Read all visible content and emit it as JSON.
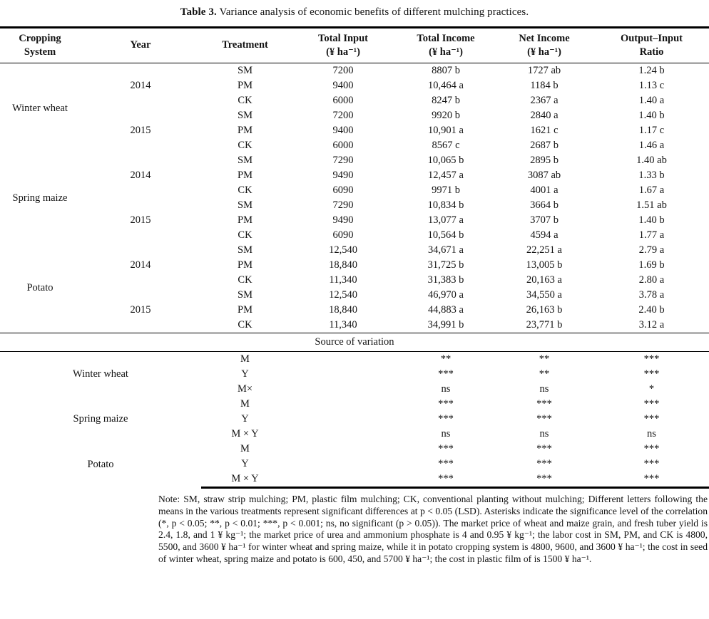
{
  "title": {
    "label": "Table 3.",
    "text": "Variance analysis of economic benefits of different mulching practices."
  },
  "table": {
    "headers": [
      {
        "top": "Cropping",
        "bottom": "System"
      },
      {
        "top": "Year",
        "bottom": ""
      },
      {
        "top": "Treatment",
        "bottom": ""
      },
      {
        "top": "Total Input",
        "bottom": "(¥ ha⁻¹)"
      },
      {
        "top": "Total Income",
        "bottom": "(¥ ha⁻¹)"
      },
      {
        "top": "Net Income",
        "bottom": "(¥ ha⁻¹)"
      },
      {
        "top": "Output–Input",
        "bottom": "Ratio"
      }
    ],
    "groups": [
      {
        "crop": "Winter wheat",
        "years": [
          {
            "year": "2014",
            "rows": [
              {
                "treatment": "SM",
                "input": "7200",
                "income": "8807 b",
                "net": "1727 ab",
                "ratio": "1.24 b"
              },
              {
                "treatment": "PM",
                "input": "9400",
                "income": "10,464 a",
                "net": "1184 b",
                "ratio": "1.13 c"
              },
              {
                "treatment": "CK",
                "input": "6000",
                "income": "8247 b",
                "net": "2367 a",
                "ratio": "1.40 a"
              }
            ]
          },
          {
            "year": "2015",
            "rows": [
              {
                "treatment": "SM",
                "input": "7200",
                "income": "9920 b",
                "net": "2840 a",
                "ratio": "1.40 b"
              },
              {
                "treatment": "PM",
                "input": "9400",
                "income": "10,901 a",
                "net": "1621 c",
                "ratio": "1.17 c"
              },
              {
                "treatment": "CK",
                "input": "6000",
                "income": "8567 c",
                "net": "2687 b",
                "ratio": "1.46 a"
              }
            ]
          }
        ]
      },
      {
        "crop": "Spring maize",
        "years": [
          {
            "year": "2014",
            "rows": [
              {
                "treatment": "SM",
                "input": "7290",
                "income": "10,065 b",
                "net": "2895 b",
                "ratio": "1.40 ab"
              },
              {
                "treatment": "PM",
                "input": "9490",
                "income": "12,457 a",
                "net": "3087 ab",
                "ratio": "1.33 b"
              },
              {
                "treatment": "CK",
                "input": "6090",
                "income": "9971 b",
                "net": "4001 a",
                "ratio": "1.67 a"
              }
            ]
          },
          {
            "year": "2015",
            "rows": [
              {
                "treatment": "SM",
                "input": "7290",
                "income": "10,834 b",
                "net": "3664 b",
                "ratio": "1.51 ab"
              },
              {
                "treatment": "PM",
                "input": "9490",
                "income": "13,077 a",
                "net": "3707 b",
                "ratio": "1.40 b"
              },
              {
                "treatment": "CK",
                "input": "6090",
                "income": "10,564 b",
                "net": "4594 a",
                "ratio": "1.77 a"
              }
            ]
          }
        ]
      },
      {
        "crop": "Potato",
        "years": [
          {
            "year": "2014",
            "rows": [
              {
                "treatment": "SM",
                "input": "12,540",
                "income": "34,671 a",
                "net": "22,251 a",
                "ratio": "2.79 a"
              },
              {
                "treatment": "PM",
                "input": "18,840",
                "income": "31,725 b",
                "net": "13,005 b",
                "ratio": "1.69 b"
              },
              {
                "treatment": "CK",
                "input": "11,340",
                "income": "31,383 b",
                "net": "20,163 a",
                "ratio": "2.80 a"
              }
            ]
          },
          {
            "year": "2015",
            "rows": [
              {
                "treatment": "SM",
                "input": "12,540",
                "income": "46,970 a",
                "net": "34,550 a",
                "ratio": "3.78 a"
              },
              {
                "treatment": "PM",
                "input": "18,840",
                "income": "44,883 a",
                "net": "26,163 b",
                "ratio": "2.40 b"
              },
              {
                "treatment": "CK",
                "input": "11,340",
                "income": "34,991 b",
                "net": "23,771 b",
                "ratio": "3.12 a"
              }
            ]
          }
        ]
      }
    ]
  },
  "source_section": {
    "heading": "Source of variation",
    "groups": [
      {
        "crop": "Winter wheat",
        "rows": [
          {
            "factor": "M",
            "income": "**",
            "net": "**",
            "ratio": "***"
          },
          {
            "factor": "Y",
            "income": "***",
            "net": "**",
            "ratio": "***"
          },
          {
            "factor": "M×",
            "income": "ns",
            "net": "ns",
            "ratio": "*"
          }
        ]
      },
      {
        "crop": "Spring maize",
        "rows": [
          {
            "factor": "M",
            "income": "***",
            "net": "***",
            "ratio": "***"
          },
          {
            "factor": "Y",
            "income": "***",
            "net": "***",
            "ratio": "***"
          },
          {
            "factor": "M × Y",
            "income": "ns",
            "net": "ns",
            "ratio": "ns"
          }
        ]
      },
      {
        "crop": "Potato",
        "rows": [
          {
            "factor": "M",
            "income": "***",
            "net": "***",
            "ratio": "***"
          },
          {
            "factor": "Y",
            "income": "***",
            "net": "***",
            "ratio": "***"
          },
          {
            "factor": "M × Y",
            "income": "***",
            "net": "***",
            "ratio": "***"
          }
        ]
      }
    ]
  },
  "note": "Note: SM, straw strip mulching; PM, plastic film mulching; CK, conventional planting without mulching; Different letters following the means in the various treatments represent significant differences at p < 0.05 (LSD). Asterisks indicate the significance level of the correlation (*, p < 0.05; **, p < 0.01; ***, p < 0.001; ns, no significant (p > 0.05)). The market price of wheat and maize grain, and fresh tuber yield is 2.4, 1.8, and 1 ¥ kg⁻¹; the market price of urea and ammonium phosphate is 4 and 0.95 ¥ kg⁻¹; the labor cost in SM, PM, and CK is 4800, 5500, and 3600 ¥ ha⁻¹ for winter wheat and spring maize, while it in potato cropping system is 4800, 9600, and 3600 ¥ ha⁻¹; the cost in seed of winter wheat, spring maize and potato is 600, 450, and 5700 ¥ ha⁻¹; the cost in plastic film of is 1500 ¥ ha⁻¹."
}
